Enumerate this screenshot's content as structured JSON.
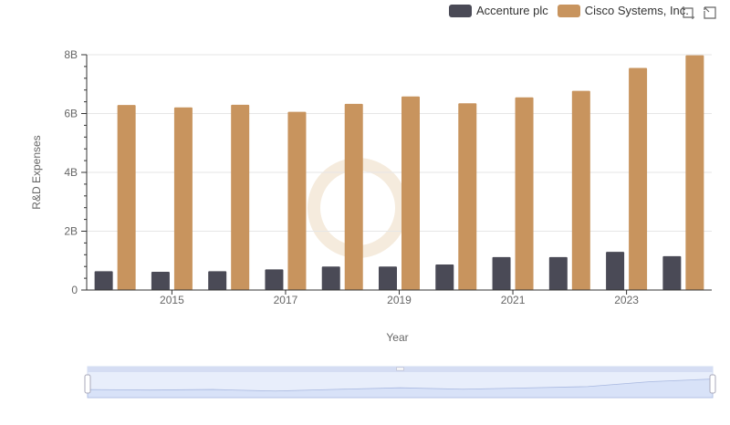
{
  "legend": [
    {
      "label": "Accenture plc",
      "color": "#4a4a56"
    },
    {
      "label": "Cisco Systems, Inc.",
      "color": "#c8945e"
    }
  ],
  "toolbox": [
    "zoom-icon",
    "restore-icon"
  ],
  "chart_data": {
    "type": "bar",
    "xlabel": "Year",
    "ylabel": "R&D Expenses",
    "ylim": [
      0,
      8000000000
    ],
    "y_ticks": [
      "0",
      "2B",
      "4B",
      "6B",
      "8B"
    ],
    "x_tick_labels": [
      "2015",
      "2017",
      "2019",
      "2021",
      "2023"
    ],
    "categories": [
      "2014",
      "2015",
      "2016",
      "2017",
      "2018",
      "2019",
      "2020",
      "2021",
      "2022",
      "2023",
      "2024"
    ],
    "series": [
      {
        "name": "Accenture plc",
        "color": "#4a4a56",
        "values": [
          640000000,
          620000000,
          640000000,
          700000000,
          800000000,
          800000000,
          870000000,
          1120000000,
          1120000000,
          1300000000,
          1150000000
        ]
      },
      {
        "name": "Cisco Systems, Inc.",
        "color": "#c8945e",
        "values": [
          6290000000,
          6210000000,
          6300000000,
          6060000000,
          6330000000,
          6580000000,
          6350000000,
          6550000000,
          6770000000,
          7550000000,
          7980000000
        ]
      }
    ],
    "grid": true,
    "legend_position": "top-right",
    "data_zoom": true
  }
}
